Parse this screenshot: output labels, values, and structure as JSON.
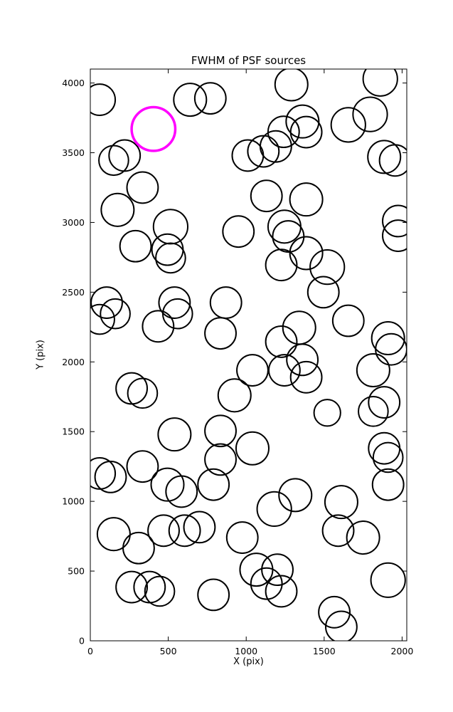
{
  "figure": {
    "background": "#ffffff"
  },
  "chart_data": {
    "type": "scatter",
    "title": "FWHM of PSF sources",
    "xlabel": "X (pix)",
    "ylabel": "Y (pix)",
    "xlim": [
      0,
      2030
    ],
    "ylim": [
      0,
      4100
    ],
    "xticks": [
      0,
      500,
      1000,
      1500,
      2000
    ],
    "yticks": [
      0,
      500,
      1000,
      1500,
      2000,
      2500,
      3000,
      3500,
      4000
    ],
    "grid": false,
    "legend": "none",
    "marker_style": "open-circle",
    "stroke_color": "#000000",
    "highlight": {
      "x": 405,
      "y": 3670,
      "r": 140,
      "color": "#ff00ff"
    },
    "points": [
      [
        60,
        3880,
        100
      ],
      [
        640,
        3880,
        105
      ],
      [
        770,
        3890,
        100
      ],
      [
        1290,
        3990,
        105
      ],
      [
        1860,
        4030,
        110
      ],
      [
        1795,
        3775,
        110
      ],
      [
        220,
        3480,
        100
      ],
      [
        150,
        3445,
        95
      ],
      [
        1240,
        3650,
        100
      ],
      [
        1361,
        3724,
        105
      ],
      [
        1385,
        3648,
        100
      ],
      [
        1655,
        3700,
        110
      ],
      [
        1885,
        3470,
        105
      ],
      [
        1955,
        3445,
        100
      ],
      [
        1010,
        3480,
        100
      ],
      [
        1110,
        3510,
        100
      ],
      [
        1190,
        3545,
        100
      ],
      [
        335,
        3250,
        100
      ],
      [
        175,
        3090,
        105
      ],
      [
        515,
        2970,
        110
      ],
      [
        1130,
        3190,
        100
      ],
      [
        1385,
        3165,
        105
      ],
      [
        1975,
        3010,
        100
      ],
      [
        1975,
        2905,
        100
      ],
      [
        950,
        2935,
        100
      ],
      [
        1245,
        2970,
        105
      ],
      [
        1270,
        2900,
        100
      ],
      [
        290,
        2830,
        100
      ],
      [
        495,
        2805,
        100
      ],
      [
        515,
        2745,
        95
      ],
      [
        1385,
        2780,
        105
      ],
      [
        1520,
        2680,
        110
      ],
      [
        1225,
        2695,
        100
      ],
      [
        1495,
        2500,
        100
      ],
      [
        105,
        2425,
        100
      ],
      [
        160,
        2345,
        95
      ],
      [
        60,
        2305,
        95
      ],
      [
        540,
        2425,
        100
      ],
      [
        560,
        2345,
        95
      ],
      [
        435,
        2255,
        100
      ],
      [
        870,
        2425,
        100
      ],
      [
        835,
        2205,
        100
      ],
      [
        1340,
        2245,
        105
      ],
      [
        1225,
        2145,
        100
      ],
      [
        1655,
        2295,
        100
      ],
      [
        1910,
        2170,
        105
      ],
      [
        1930,
        2090,
        100
      ],
      [
        1245,
        1940,
        100
      ],
      [
        1040,
        1940,
        100
      ],
      [
        1360,
        2015,
        100
      ],
      [
        265,
        1810,
        100
      ],
      [
        335,
        1775,
        95
      ],
      [
        925,
        1760,
        105
      ],
      [
        1385,
        1890,
        100
      ],
      [
        1520,
        1635,
        85
      ],
      [
        1815,
        1940,
        105
      ],
      [
        1885,
        1710,
        100
      ],
      [
        1815,
        1645,
        95
      ],
      [
        540,
        1480,
        105
      ],
      [
        835,
        1505,
        100
      ],
      [
        1040,
        1380,
        105
      ],
      [
        1885,
        1380,
        100
      ],
      [
        1910,
        1315,
        95
      ],
      [
        60,
        1200,
        100
      ],
      [
        130,
        1175,
        100
      ],
      [
        335,
        1250,
        100
      ],
      [
        495,
        1120,
        105
      ],
      [
        585,
        1070,
        100
      ],
      [
        790,
        1120,
        100
      ],
      [
        835,
        1300,
        100
      ],
      [
        1180,
        945,
        110
      ],
      [
        1315,
        1045,
        105
      ],
      [
        1610,
        995,
        105
      ],
      [
        1590,
        790,
        100
      ],
      [
        1750,
        740,
        105
      ],
      [
        1910,
        1120,
        100
      ],
      [
        150,
        765,
        105
      ],
      [
        310,
        665,
        100
      ],
      [
        470,
        790,
        100
      ],
      [
        605,
        790,
        100
      ],
      [
        700,
        815,
        100
      ],
      [
        975,
        740,
        100
      ],
      [
        265,
        385,
        100
      ],
      [
        380,
        385,
        100
      ],
      [
        445,
        355,
        95
      ],
      [
        790,
        330,
        100
      ],
      [
        1065,
        510,
        105
      ],
      [
        1130,
        410,
        100
      ],
      [
        1200,
        510,
        100
      ],
      [
        1225,
        355,
        100
      ],
      [
        1910,
        435,
        110
      ],
      [
        1565,
        205,
        100
      ],
      [
        1610,
        100,
        100
      ]
    ]
  }
}
